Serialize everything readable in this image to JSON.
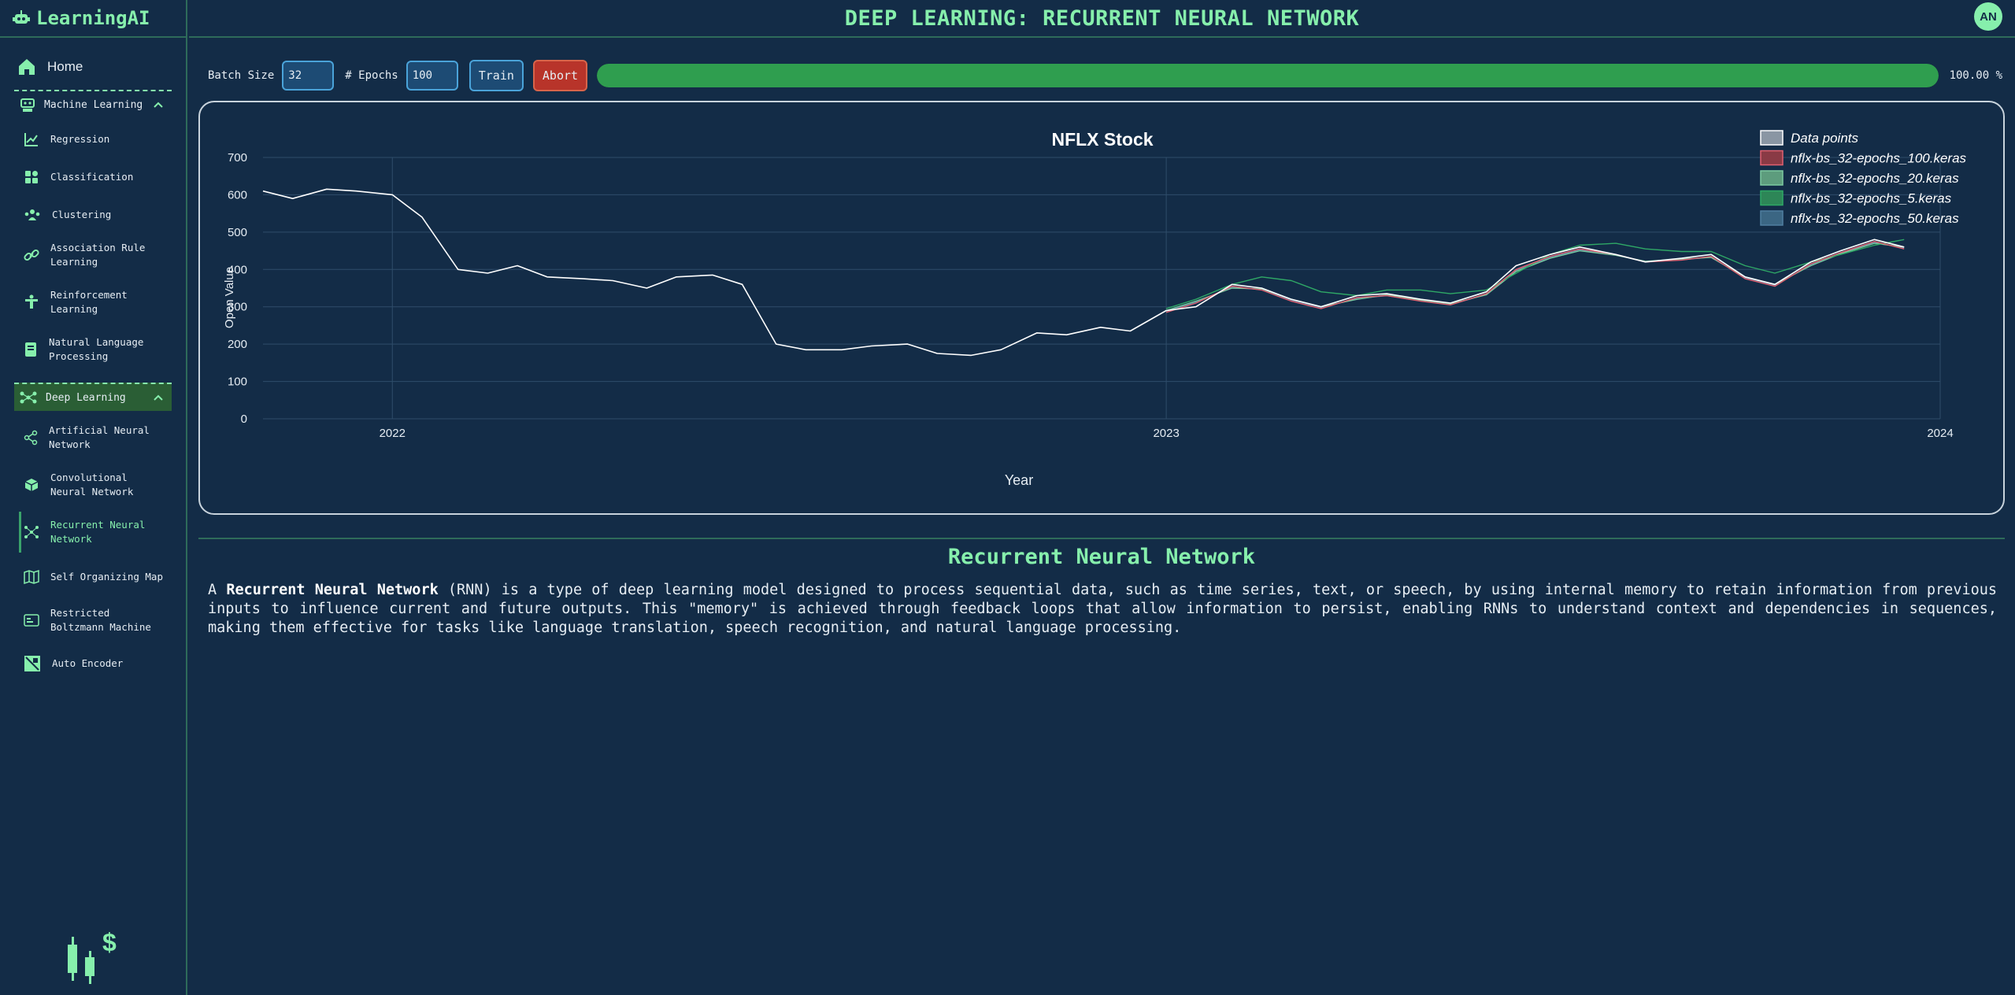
{
  "app": {
    "name": "LearningAI",
    "avatar_initials": "AN"
  },
  "page_title": "DEEP LEARNING: RECURRENT NEURAL NETWORK",
  "sidebar": {
    "home": "Home",
    "sections": [
      {
        "label": "Machine Learning",
        "items": [
          "Regression",
          "Classification",
          "Clustering",
          "Association Rule Learning",
          "Reinforcement Learning",
          "Natural Language Processing"
        ]
      },
      {
        "label": "Deep Learning",
        "items": [
          "Artificial Neural Network",
          "Convolutional Neural Network",
          "Recurrent Neural Network",
          "Self Organizing Map",
          "Restricted Boltzmann Machine",
          "Auto Encoder"
        ]
      }
    ]
  },
  "controls": {
    "batch_size_label": "Batch Size",
    "batch_size_value": "32",
    "epochs_label": "# Epochs",
    "epochs_value": "100",
    "train_label": "Train",
    "abort_label": "Abort",
    "progress": 1.0,
    "progress_text": "100.00 %"
  },
  "colors": {
    "accent": "#86efac",
    "background": "#132c47",
    "progress": "#2f9e4f",
    "abort": "#b8342a"
  },
  "chart_data": {
    "type": "line",
    "title": "NFLX Stock",
    "xlabel": "Year",
    "ylabel": "Open Value",
    "ylim": [
      0,
      700
    ],
    "yticks": [
      0,
      100,
      200,
      300,
      400,
      500,
      600,
      700
    ],
    "xlim": [
      "2021-11-01",
      "2024-01-01"
    ],
    "xticks": [
      "2022",
      "2023",
      "2024"
    ],
    "grid": true,
    "legend_position": "top-right",
    "series": [
      {
        "name": "Data points",
        "color": "#ffffff",
        "x": [
          "2021-11-01",
          "2021-11-15",
          "2021-12-01",
          "2021-12-15",
          "2022-01-01",
          "2022-01-15",
          "2022-02-01",
          "2022-02-15",
          "2022-03-01",
          "2022-03-15",
          "2022-04-01",
          "2022-04-15",
          "2022-05-01",
          "2022-05-15",
          "2022-06-01",
          "2022-06-15",
          "2022-07-01",
          "2022-07-15",
          "2022-08-01",
          "2022-08-15",
          "2022-09-01",
          "2022-09-15",
          "2022-10-01",
          "2022-10-15",
          "2022-11-01",
          "2022-11-15",
          "2022-12-01",
          "2022-12-15",
          "2023-01-01",
          "2023-01-15",
          "2023-02-01",
          "2023-02-15",
          "2023-03-01",
          "2023-03-15",
          "2023-04-01",
          "2023-04-15",
          "2023-05-01",
          "2023-05-15",
          "2023-06-01",
          "2023-06-15",
          "2023-07-01",
          "2023-07-15",
          "2023-08-01",
          "2023-08-15",
          "2023-09-01",
          "2023-09-15",
          "2023-10-01",
          "2023-10-15",
          "2023-11-01",
          "2023-11-15",
          "2023-12-01",
          "2023-12-15"
        ],
        "values": [
          610,
          590,
          615,
          610,
          600,
          540,
          400,
          390,
          410,
          380,
          375,
          370,
          350,
          380,
          385,
          360,
          200,
          185,
          185,
          195,
          200,
          175,
          170,
          185,
          230,
          225,
          245,
          235,
          290,
          300,
          360,
          350,
          320,
          300,
          330,
          335,
          320,
          310,
          340,
          410,
          440,
          460,
          440,
          420,
          430,
          440,
          380,
          360,
          420,
          450,
          480,
          460
        ]
      },
      {
        "name": "nflx-bs_32-epochs_100.keras",
        "color": "#e06070",
        "x": [
          "2023-01-01",
          "2023-01-15",
          "2023-02-01",
          "2023-02-15",
          "2023-03-01",
          "2023-03-15",
          "2023-04-01",
          "2023-04-15",
          "2023-05-01",
          "2023-05-15",
          "2023-06-01",
          "2023-06-15",
          "2023-07-01",
          "2023-07-15",
          "2023-08-01",
          "2023-08-15",
          "2023-09-01",
          "2023-09-15",
          "2023-10-01",
          "2023-10-15",
          "2023-11-01",
          "2023-11-15",
          "2023-12-01",
          "2023-12-15"
        ],
        "values": [
          285,
          310,
          355,
          345,
          315,
          295,
          325,
          330,
          315,
          305,
          335,
          400,
          435,
          455,
          440,
          420,
          425,
          435,
          375,
          355,
          415,
          445,
          475,
          455
        ]
      },
      {
        "name": "nflx-bs_32-epochs_20.keras",
        "color": "#7cc9a0",
        "x": [
          "2023-01-01",
          "2023-01-15",
          "2023-02-01",
          "2023-02-15",
          "2023-03-01",
          "2023-03-15",
          "2023-04-01",
          "2023-04-15",
          "2023-05-01",
          "2023-05-15",
          "2023-06-01",
          "2023-06-15",
          "2023-07-01",
          "2023-07-15",
          "2023-08-01",
          "2023-08-15",
          "2023-09-01",
          "2023-09-15",
          "2023-10-01",
          "2023-10-15",
          "2023-11-01",
          "2023-11-15",
          "2023-12-01",
          "2023-12-15"
        ],
        "values": [
          290,
          315,
          350,
          348,
          320,
          300,
          320,
          332,
          318,
          308,
          332,
          395,
          430,
          450,
          438,
          422,
          428,
          432,
          380,
          360,
          410,
          442,
          470,
          460
        ]
      },
      {
        "name": "nflx-bs_32-epochs_5.keras",
        "color": "#2fa866",
        "x": [
          "2023-01-01",
          "2023-01-15",
          "2023-02-01",
          "2023-02-15",
          "2023-03-01",
          "2023-03-15",
          "2023-04-01",
          "2023-04-15",
          "2023-05-01",
          "2023-05-15",
          "2023-06-01",
          "2023-06-15",
          "2023-07-01",
          "2023-07-15",
          "2023-08-01",
          "2023-08-15",
          "2023-09-01",
          "2023-09-15",
          "2023-10-01",
          "2023-10-15",
          "2023-11-01",
          "2023-11-15",
          "2023-12-01",
          "2023-12-15"
        ],
        "values": [
          295,
          320,
          360,
          380,
          370,
          340,
          330,
          345,
          345,
          335,
          345,
          390,
          440,
          465,
          470,
          455,
          448,
          448,
          410,
          390,
          420,
          440,
          465,
          480
        ]
      },
      {
        "name": "nflx-bs_32-epochs_50.keras",
        "color": "#4f7fa0",
        "x": [
          "2023-01-01",
          "2023-01-15",
          "2023-02-01",
          "2023-02-15",
          "2023-03-01",
          "2023-03-15",
          "2023-04-01",
          "2023-04-15",
          "2023-05-01",
          "2023-05-15",
          "2023-06-01",
          "2023-06-15",
          "2023-07-01",
          "2023-07-15",
          "2023-08-01",
          "2023-08-15",
          "2023-09-01",
          "2023-09-15",
          "2023-10-01",
          "2023-10-15",
          "2023-11-01",
          "2023-11-15",
          "2023-12-01",
          "2023-12-15"
        ],
        "values": [
          288,
          312,
          352,
          346,
          318,
          298,
          322,
          330,
          316,
          306,
          333,
          398,
          432,
          452,
          439,
          421,
          426,
          433,
          378,
          358,
          412,
          444,
          472,
          458
        ]
      }
    ]
  },
  "section_title": "Recurrent Neural Network",
  "description": {
    "prefix": "A ",
    "term": "Recurrent Neural Network",
    "body": " (RNN) is a type of deep learning model designed to process sequential data, such as time series, text, or speech, by using internal memory to retain information from previous inputs to influence current and future outputs. This \"memory\" is achieved through feedback loops that allow information to persist, enabling RNNs to understand context and dependencies in sequences, making them effective for tasks like language translation, speech recognition, and natural language processing."
  }
}
